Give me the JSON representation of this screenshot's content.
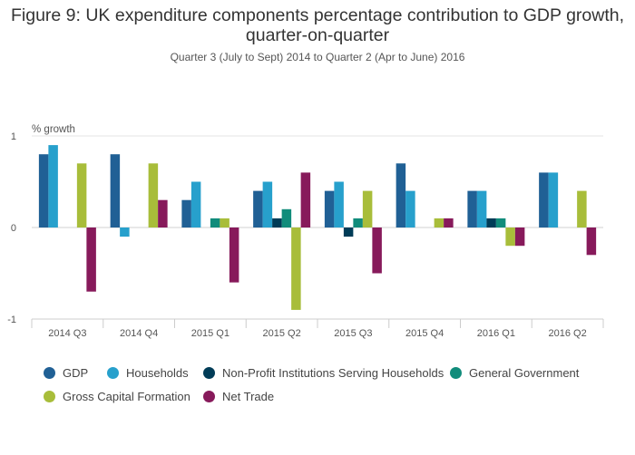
{
  "chart_data": {
    "type": "bar",
    "title": "Figure 9: UK expenditure components percentage contribution to GDP growth, quarter-on-quarter",
    "subtitle": "Quarter 3 (July to Sept) 2014 to Quarter 2 (Apr to June) 2016",
    "ylabel": "% growth",
    "xlabel": "",
    "ylim": [
      -1,
      1
    ],
    "yticks": [
      1,
      0,
      -1
    ],
    "grid": true,
    "legend_position": "bottom",
    "categories": [
      "2014 Q3",
      "2014 Q4",
      "2015 Q1",
      "2015 Q2",
      "2015 Q3",
      "2015 Q4",
      "2016 Q1",
      "2016 Q2"
    ],
    "series": [
      {
        "name": "GDP",
        "color": "#206095",
        "values": [
          0.8,
          0.8,
          0.3,
          0.4,
          0.4,
          0.7,
          0.4,
          0.6
        ]
      },
      {
        "name": "Households",
        "color": "#27a0cc",
        "values": [
          0.9,
          -0.1,
          0.5,
          0.5,
          0.5,
          0.4,
          0.4,
          0.6
        ]
      },
      {
        "name": "Non-Profit Institutions Serving Households",
        "color": "#003c57",
        "values": [
          0,
          0,
          0,
          0.1,
          -0.1,
          0,
          0.1,
          0
        ]
      },
      {
        "name": "General Government",
        "color": "#118c7b",
        "values": [
          0,
          0,
          0.1,
          0.2,
          0.1,
          0,
          0.1,
          0
        ]
      },
      {
        "name": "Gross Capital Formation",
        "color": "#a8bd3a",
        "values": [
          0.7,
          0.7,
          0.1,
          -0.9,
          0.4,
          0.1,
          -0.2,
          0.4
        ]
      },
      {
        "name": "Net Trade",
        "color": "#871a5b",
        "values": [
          -0.7,
          0.3,
          -0.6,
          0.6,
          -0.5,
          0.1,
          -0.2,
          -0.3
        ]
      }
    ]
  }
}
